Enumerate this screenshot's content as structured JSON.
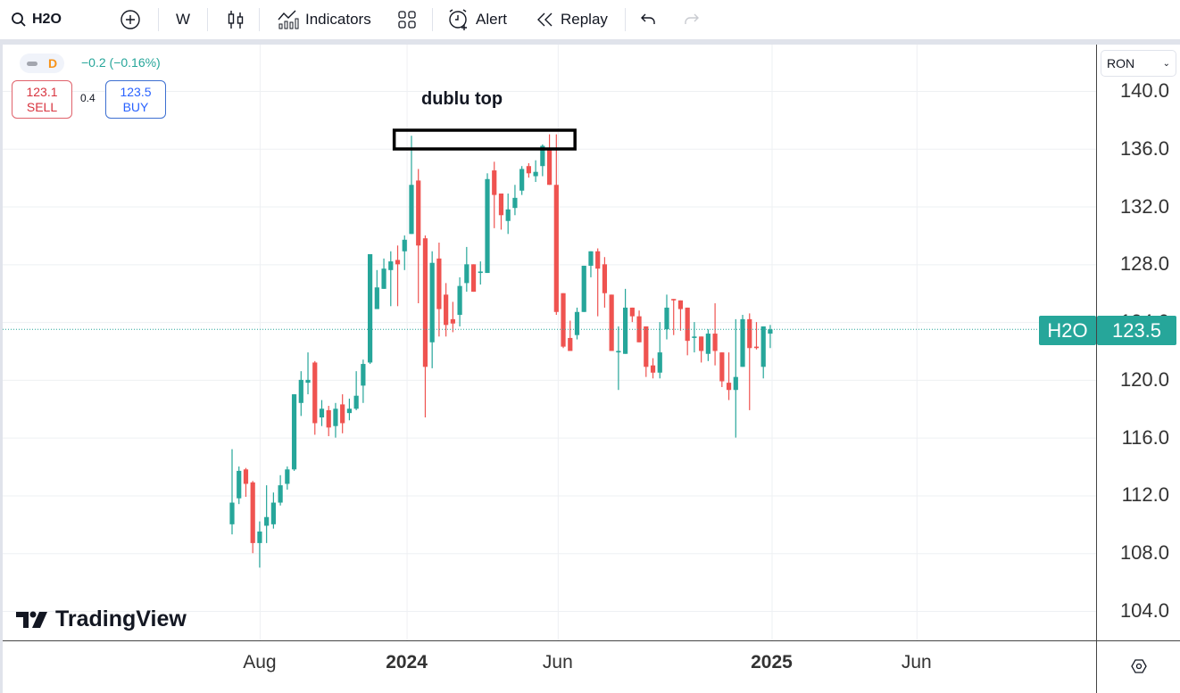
{
  "toolbar": {
    "symbol": "H2O",
    "interval": "W",
    "indicators": "Indicators",
    "alert": "Alert",
    "replay": "Replay"
  },
  "legend": {
    "badge": "D",
    "change": "−0.2 (−0.16%)",
    "sell_price": "123.1",
    "sell_label": "SELL",
    "spread": "0.4",
    "buy_price": "123.5",
    "buy_label": "BUY"
  },
  "annotation": {
    "text": "dublu top"
  },
  "currency": {
    "selected": "RON"
  },
  "last_price": {
    "symbol": "H2O",
    "value": "123.5"
  },
  "logo": {
    "text": "TradingView"
  },
  "colors": {
    "up": "#26a69a",
    "down": "#ef5350",
    "accent": "#26a69a"
  },
  "chart_data": {
    "type": "candlestick",
    "title": "H2O, W",
    "ylim": [
      104,
      140
    ],
    "yticks": [
      "140.0",
      "136.0",
      "132.0",
      "128.0",
      "124.0",
      "120.0",
      "116.0",
      "112.0",
      "108.0",
      "104.0"
    ],
    "xticks": [
      {
        "label": "Aug",
        "index": 4,
        "bold": false
      },
      {
        "label": "2024",
        "index": 25.3,
        "bold": true
      },
      {
        "label": "Jun",
        "index": 47.2,
        "bold": false
      },
      {
        "label": "2025",
        "index": 78.2,
        "bold": true
      },
      {
        "label": "Jun",
        "index": 99.2,
        "bold": false
      }
    ],
    "last_value": 123.5,
    "annotation_box": {
      "from_index": 23.5,
      "to_index": 49.7,
      "low": 134.6,
      "high": 135.9
    },
    "ohlc": [
      [
        110.0,
        115.2,
        109.3,
        111.5
      ],
      [
        111.8,
        114.0,
        111.4,
        113.7
      ],
      [
        113.8,
        113.9,
        111.9,
        112.8
      ],
      [
        112.9,
        113.0,
        108.0,
        108.7
      ],
      [
        108.7,
        110.2,
        107.0,
        109.5
      ],
      [
        109.9,
        112.7,
        108.7,
        110.5
      ],
      [
        110.0,
        112.2,
        109.7,
        111.5
      ],
      [
        111.5,
        113.4,
        111.3,
        112.7
      ],
      [
        112.8,
        114.0,
        112.4,
        113.8
      ],
      [
        113.8,
        119.0,
        113.7,
        119.0
      ],
      [
        118.4,
        120.6,
        117.5,
        120.0
      ],
      [
        119.8,
        121.9,
        119.0,
        120.0
      ],
      [
        121.2,
        121.3,
        116.2,
        117.0
      ],
      [
        117.4,
        118.6,
        116.8,
        118.0
      ],
      [
        117.9,
        118.2,
        116.1,
        116.7
      ],
      [
        116.8,
        118.4,
        116.0,
        118.0
      ],
      [
        118.3,
        119.0,
        116.3,
        117.0
      ],
      [
        117.7,
        118.7,
        117.2,
        118.0
      ],
      [
        118.0,
        120.6,
        117.9,
        118.9
      ],
      [
        119.6,
        121.4,
        118.4,
        121.1
      ],
      [
        121.2,
        128.7,
        121.1,
        128.7
      ],
      [
        124.9,
        127.6,
        124.9,
        126.4
      ],
      [
        126.3,
        128.4,
        126.3,
        127.7
      ],
      [
        127.6,
        128.9,
        125.1,
        128.2
      ],
      [
        128.3,
        129.3,
        125.1,
        128.0
      ],
      [
        128.9,
        130.0,
        127.6,
        129.7
      ],
      [
        130.1,
        136.9,
        130.1,
        133.5
      ],
      [
        133.8,
        134.6,
        125.3,
        129.3
      ],
      [
        129.8,
        130.0,
        117.4,
        120.9
      ],
      [
        122.6,
        128.9,
        120.8,
        128.1
      ],
      [
        128.4,
        129.5,
        123.0,
        124.9
      ],
      [
        125.9,
        126.7,
        123.0,
        123.8
      ],
      [
        124.2,
        125.4,
        123.3,
        123.9
      ],
      [
        124.5,
        127.1,
        123.7,
        126.5
      ],
      [
        126.7,
        129.2,
        126.1,
        128.0
      ],
      [
        128.0,
        128.0,
        126.1,
        126.1
      ],
      [
        127.4,
        128.2,
        126.6,
        127.5
      ],
      [
        127.4,
        134.3,
        127.4,
        133.9
      ],
      [
        134.5,
        135.1,
        130.5,
        132.8
      ],
      [
        132.9,
        132.9,
        130.4,
        131.4
      ],
      [
        131.0,
        132.9,
        130.1,
        131.8
      ],
      [
        131.9,
        133.5,
        131.4,
        132.6
      ],
      [
        133.1,
        134.8,
        132.8,
        134.6
      ],
      [
        134.8,
        135.0,
        134.0,
        134.3
      ],
      [
        134.1,
        135.2,
        133.7,
        134.4
      ],
      [
        134.8,
        136.3,
        134.1,
        136.2
      ],
      [
        135.9,
        137.0,
        133.5,
        133.5
      ],
      [
        133.5,
        137.0,
        124.5,
        124.7
      ],
      [
        126.0,
        126.0,
        122.2,
        122.3
      ],
      [
        122.9,
        124.1,
        122.0,
        122.0
      ],
      [
        123.1,
        125.0,
        122.8,
        124.7
      ],
      [
        124.7,
        127.9,
        124.7,
        127.9
      ],
      [
        127.9,
        128.9,
        127.1,
        128.9
      ],
      [
        128.9,
        129.1,
        124.4,
        127.7
      ],
      [
        128.0,
        128.5,
        125.0,
        126.0
      ],
      [
        125.9,
        125.9,
        122.0,
        122.0
      ],
      [
        121.9,
        123.7,
        119.3,
        122.0
      ],
      [
        121.8,
        126.3,
        121.8,
        125.0
      ],
      [
        125.0,
        125.0,
        124.0,
        124.4
      ],
      [
        124.4,
        124.8,
        122.6,
        122.6
      ],
      [
        123.7,
        123.7,
        120.2,
        120.9
      ],
      [
        121.0,
        121.5,
        120.1,
        120.5
      ],
      [
        120.5,
        124.0,
        120.1,
        121.9
      ],
      [
        123.5,
        125.9,
        122.8,
        125.0
      ],
      [
        125.6,
        125.6,
        123.1,
        125.5
      ],
      [
        125.5,
        125.5,
        123.4,
        124.9
      ],
      [
        125.0,
        125.0,
        121.7,
        122.7
      ],
      [
        122.9,
        124.0,
        121.9,
        123.0
      ],
      [
        123.0,
        123.0,
        121.2,
        122.0
      ],
      [
        121.8,
        123.5,
        121.3,
        123.2
      ],
      [
        123.2,
        125.3,
        121.0,
        122.0
      ],
      [
        121.9,
        121.9,
        119.5,
        119.9
      ],
      [
        119.8,
        121.9,
        118.6,
        119.3
      ],
      [
        119.3,
        124.2,
        116.0,
        120.2
      ],
      [
        120.9,
        124.5,
        120.9,
        124.2
      ],
      [
        124.2,
        124.6,
        117.9,
        122.2
      ],
      [
        122.3,
        124.0,
        122.1,
        122.2
      ],
      [
        120.9,
        123.7,
        120.1,
        123.7
      ],
      [
        123.2,
        123.8,
        122.2,
        123.5
      ]
    ]
  }
}
